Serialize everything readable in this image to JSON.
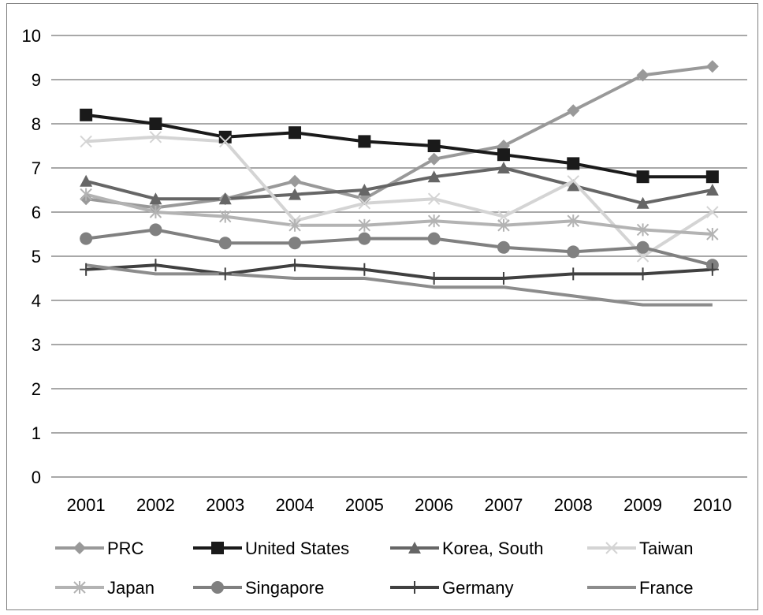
{
  "chart_data": {
    "type": "line",
    "title": "",
    "xlabel": "",
    "ylabel": "",
    "ylim": [
      0,
      10
    ],
    "yticks": [
      "0",
      "1",
      "2",
      "3",
      "4",
      "5",
      "6",
      "7",
      "8",
      "9",
      "10"
    ],
    "categories": [
      "2001",
      "2002",
      "2003",
      "2004",
      "2005",
      "2006",
      "2007",
      "2008",
      "2009",
      "2010"
    ],
    "grid": "horizontal",
    "legend_position": "bottom",
    "series": [
      {
        "name": "PRC",
        "color": "#999999",
        "marker": "diamond",
        "values": [
          6.3,
          6.1,
          6.3,
          6.7,
          6.3,
          7.2,
          7.5,
          8.3,
          9.1,
          9.3
        ]
      },
      {
        "name": "United States",
        "color": "#1a1a1a",
        "marker": "square",
        "values": [
          8.2,
          8.0,
          7.7,
          7.8,
          7.6,
          7.5,
          7.3,
          7.1,
          6.8,
          6.8
        ]
      },
      {
        "name": "Korea, South",
        "color": "#666666",
        "marker": "triangle",
        "values": [
          6.7,
          6.3,
          6.3,
          6.4,
          6.5,
          6.8,
          7.0,
          6.6,
          6.2,
          6.5
        ]
      },
      {
        "name": "Taiwan",
        "color": "#d4d4d4",
        "marker": "x",
        "values": [
          7.6,
          7.7,
          7.6,
          5.8,
          6.2,
          6.3,
          5.9,
          6.7,
          5.0,
          6.0
        ]
      },
      {
        "name": "Japan",
        "color": "#b3b3b3",
        "marker": "asterisk",
        "values": [
          6.4,
          6.0,
          5.9,
          5.7,
          5.7,
          5.8,
          5.7,
          5.8,
          5.6,
          5.5
        ]
      },
      {
        "name": "Singapore",
        "color": "#808080",
        "marker": "circle",
        "values": [
          5.4,
          5.6,
          5.3,
          5.3,
          5.4,
          5.4,
          5.2,
          5.1,
          5.2,
          4.8
        ]
      },
      {
        "name": "Germany",
        "color": "#404040",
        "marker": "plus",
        "values": [
          4.7,
          4.8,
          4.6,
          4.8,
          4.7,
          4.5,
          4.5,
          4.6,
          4.6,
          4.7
        ]
      },
      {
        "name": "France",
        "color": "#8c8c8c",
        "marker": "none",
        "values": [
          4.8,
          4.6,
          4.6,
          4.5,
          4.5,
          4.3,
          4.3,
          4.1,
          3.9,
          3.9
        ]
      }
    ]
  }
}
